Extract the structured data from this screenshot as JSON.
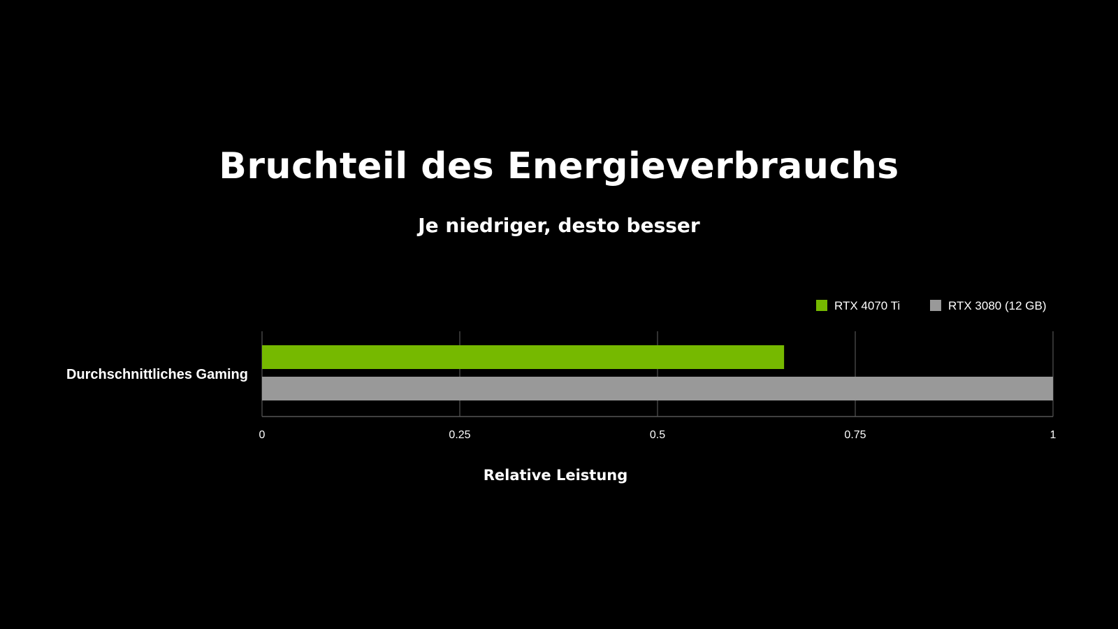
{
  "chart_data": {
    "type": "bar",
    "orientation": "horizontal",
    "title": "Bruchteil des Energieverbrauchs",
    "subtitle": "Je niedriger, desto besser",
    "xlabel": "Relative Leistung",
    "ylabel": "",
    "categories": [
      "Durchschnittliches Gaming"
    ],
    "series": [
      {
        "name": "RTX 4070 Ti",
        "color": "#76b900",
        "values": [
          0.66
        ]
      },
      {
        "name": "RTX 3080 (12 GB)",
        "color": "#999999",
        "values": [
          1.0
        ]
      }
    ],
    "xlim": [
      0,
      1
    ],
    "xticks": [
      0,
      0.25,
      0.5,
      0.75,
      1
    ],
    "xtick_labels": [
      "0",
      "0.25",
      "0.5",
      "0.75",
      "1"
    ],
    "grid": "vertical",
    "legend_position": "top-right",
    "background": "#000000",
    "gridline_color": "#555555",
    "text_color": "#ffffff"
  }
}
